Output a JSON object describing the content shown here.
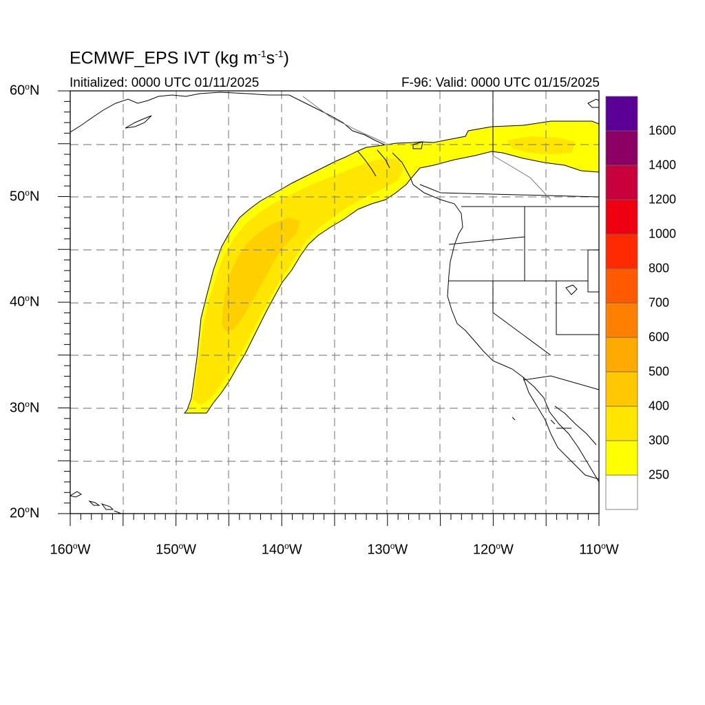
{
  "title": {
    "prefix": "ECMWF_EPS IVT (kg m",
    "exp1": "-1",
    "mid": "s",
    "exp2": "-1",
    "suffix": ")"
  },
  "initialized": "Initialized: 0000 UTC 01/11/2025",
  "valid": "F-96: Valid: 0000 UTC 01/15/2025",
  "map": {
    "lon_range": [
      -160,
      -110
    ],
    "lat_range": [
      20,
      60
    ],
    "gridlines": "dashed",
    "lat_labels": [
      {
        "lat": 60,
        "text": "60",
        "unit": "N"
      },
      {
        "lat": 50,
        "text": "50",
        "unit": "N"
      },
      {
        "lat": 40,
        "text": "40",
        "unit": "N"
      },
      {
        "lat": 30,
        "text": "30",
        "unit": "N"
      },
      {
        "lat": 20,
        "text": "20",
        "unit": "N"
      }
    ],
    "lon_labels": [
      {
        "lon": -160,
        "text": "160",
        "unit": "W"
      },
      {
        "lon": -150,
        "text": "150",
        "unit": "W"
      },
      {
        "lon": -140,
        "text": "140",
        "unit": "W"
      },
      {
        "lon": -130,
        "text": "130",
        "unit": "W"
      },
      {
        "lon": -120,
        "text": "120",
        "unit": "W"
      },
      {
        "lon": -110,
        "text": "110",
        "unit": "W"
      }
    ],
    "degree_symbol": "o"
  },
  "colorbar": {
    "levels": [
      "250",
      "300",
      "400",
      "500",
      "600",
      "700",
      "800",
      "1000",
      "1200",
      "1400",
      "1600"
    ],
    "colors": [
      "#ffffff",
      "#ffff00",
      "#ffe600",
      "#ffc800",
      "#ffaa00",
      "#ff8000",
      "#ff5a00",
      "#ff2a00",
      "#ee0010",
      "#c8003c",
      "#8c0064",
      "#5a0096"
    ]
  },
  "ivt_plume": {
    "outer_color": "#ffff00",
    "inner_color": "#ffe600",
    "core_color": "#ffd000"
  }
}
